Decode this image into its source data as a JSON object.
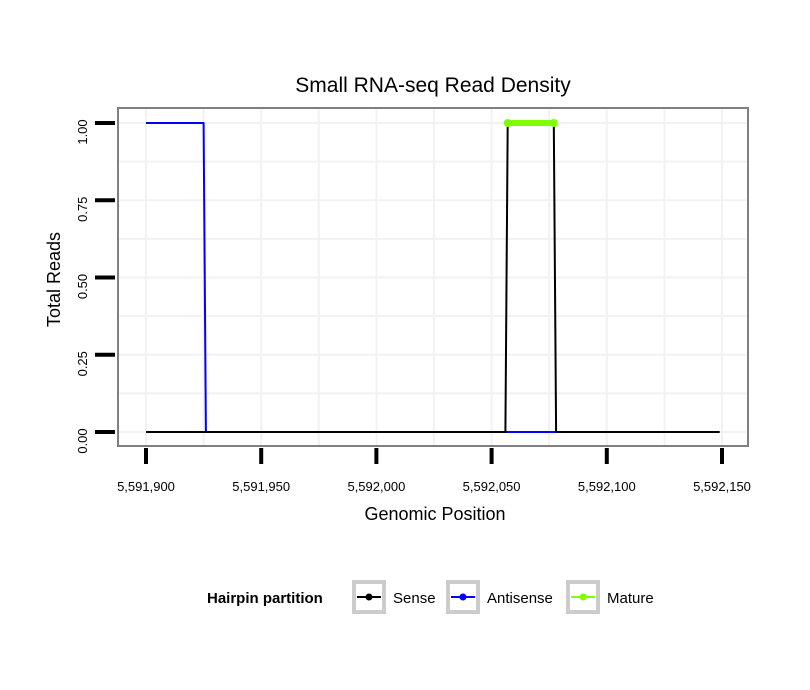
{
  "chart_data": {
    "type": "line",
    "title": "Small RNA-seq Read Density",
    "xlabel": "Genomic Position",
    "ylabel": "Total Reads",
    "xlim": [
      5591900,
      5592150
    ],
    "ylim": [
      0,
      1
    ],
    "x_ticks": [
      5591900,
      5591950,
      5592000,
      5592050,
      5592100,
      5592150
    ],
    "x_tick_labels": [
      "5,591,900",
      "5,591,950",
      "5,592,000",
      "5,592,050",
      "5,592,100",
      "5,592,150"
    ],
    "y_ticks": [
      0,
      0.25,
      0.5,
      0.75,
      1
    ],
    "y_tick_labels": [
      "0.00",
      "0.25",
      "0.50",
      "0.75",
      "1.00"
    ],
    "grid": true,
    "legend_position": "bottom",
    "legend_title": "Hairpin partition",
    "series": [
      {
        "name": "Sense",
        "color": "#000000",
        "points": [
          [
            5591900,
            0
          ],
          [
            5592056,
            0
          ],
          [
            5592057,
            1
          ],
          [
            5592077,
            1
          ],
          [
            5592078,
            0
          ],
          [
            5592149,
            0
          ]
        ]
      },
      {
        "name": "Antisense",
        "color": "#0000ff",
        "points": [
          [
            5591900,
            1
          ],
          [
            5591925,
            1
          ],
          [
            5591926,
            0
          ],
          [
            5592056,
            0
          ],
          [
            5592078,
            0
          ]
        ]
      },
      {
        "name": "Mature",
        "color": "#80ff00",
        "points": [
          [
            5592057,
            1
          ],
          [
            5592077,
            1
          ]
        ]
      }
    ]
  }
}
